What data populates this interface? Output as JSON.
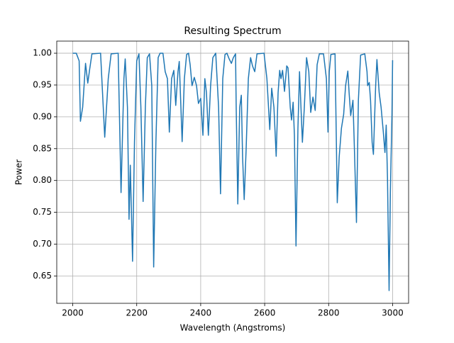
{
  "chart_data": {
    "type": "line",
    "title": "Resulting Spectrum",
    "x_label": "Wavelength (Angstroms)",
    "y_label": "Power",
    "x": [
      2000,
      2011,
      2020,
      2024,
      2031,
      2040,
      2047,
      2053,
      2060,
      2087,
      2100,
      2111,
      2120,
      2142,
      2151,
      2160,
      2164,
      2171,
      2176,
      2180,
      2187,
      2193,
      2200,
      2207,
      2213,
      2220,
      2227,
      2233,
      2240,
      2247,
      2253,
      2260,
      2267,
      2273,
      2282,
      2289,
      2296,
      2302,
      2309,
      2316,
      2322,
      2329,
      2333,
      2342,
      2349,
      2356,
      2362,
      2367,
      2373,
      2380,
      2387,
      2393,
      2400,
      2407,
      2413,
      2418,
      2424,
      2431,
      2438,
      2447,
      2456,
      2462,
      2469,
      2476,
      2482,
      2489,
      2496,
      2502,
      2509,
      2511,
      2516,
      2522,
      2527,
      2531,
      2536,
      2542,
      2549,
      2556,
      2562,
      2569,
      2576,
      2598,
      2607,
      2616,
      2622,
      2629,
      2636,
      2642,
      2647,
      2651,
      2656,
      2662,
      2669,
      2673,
      2680,
      2684,
      2689,
      2693,
      2698,
      2704,
      2709,
      2713,
      2718,
      2724,
      2731,
      2738,
      2744,
      2751,
      2758,
      2764,
      2771,
      2784,
      2793,
      2798,
      2802,
      2807,
      2820,
      2827,
      2833,
      2840,
      2847,
      2853,
      2860,
      2864,
      2869,
      2876,
      2880,
      2887,
      2893,
      2900,
      2913,
      2920,
      2922,
      2927,
      2931,
      2936,
      2940,
      2947,
      2951,
      2958,
      2964,
      2971,
      2976,
      2980,
      2984,
      2989,
      2993,
      2998,
      3000
    ],
    "series": [
      {
        "name": "Power",
        "color": "#1f77b4",
        "values": [
          1.0,
          1.0,
          0.988,
          0.893,
          0.915,
          0.984,
          0.953,
          0.975,
          0.999,
          1.0,
          0.868,
          0.96,
          0.999,
          1.0,
          0.781,
          0.96,
          0.991,
          0.915,
          0.739,
          0.824,
          0.673,
          0.86,
          0.988,
          0.999,
          0.915,
          0.767,
          0.915,
          0.993,
          0.999,
          0.949,
          0.664,
          0.86,
          0.993,
          1.0,
          1.0,
          0.971,
          0.96,
          0.876,
          0.96,
          0.973,
          0.918,
          0.971,
          0.987,
          0.861,
          0.96,
          0.998,
          1.0,
          0.982,
          0.949,
          0.962,
          0.949,
          0.921,
          0.929,
          0.871,
          0.96,
          0.938,
          0.871,
          0.949,
          0.993,
          1.0,
          0.915,
          0.779,
          0.96,
          0.998,
          1.0,
          0.991,
          0.984,
          0.993,
          0.999,
          0.915,
          0.763,
          0.915,
          0.934,
          0.837,
          0.77,
          0.848,
          0.96,
          0.993,
          0.98,
          0.971,
          0.999,
          1.0,
          0.96,
          0.88,
          0.945,
          0.915,
          0.838,
          0.938,
          0.973,
          0.96,
          0.973,
          0.94,
          0.98,
          0.977,
          0.915,
          0.895,
          0.923,
          0.871,
          0.697,
          0.882,
          0.971,
          0.921,
          0.86,
          0.915,
          0.993,
          0.971,
          0.907,
          0.931,
          0.91,
          0.982,
          0.999,
          0.999,
          0.96,
          0.876,
          0.971,
          0.998,
          0.999,
          0.765,
          0.837,
          0.882,
          0.904,
          0.949,
          0.972,
          0.938,
          0.902,
          0.926,
          0.86,
          0.734,
          0.926,
          0.997,
          0.999,
          0.971,
          0.949,
          0.954,
          0.926,
          0.86,
          0.841,
          0.949,
          0.99,
          0.938,
          0.915,
          0.876,
          0.844,
          0.887,
          0.804,
          0.627,
          0.781,
          0.904,
          0.989
        ]
      }
    ],
    "xlim": [
      1950,
      3050
    ],
    "ylim": [
      0.607,
      1.019
    ],
    "xticks": [
      2000,
      2200,
      2400,
      2600,
      2800,
      3000
    ],
    "yticks": [
      0.65,
      {
        "value": 0.7,
        "label": "0.70"
      },
      0.75,
      {
        "value": 0.8,
        "label": "0.80"
      },
      0.85,
      {
        "value": 0.9,
        "label": "0.90"
      },
      0.95,
      {
        "value": 1.0,
        "label": "1.00"
      }
    ],
    "grid": true
  }
}
